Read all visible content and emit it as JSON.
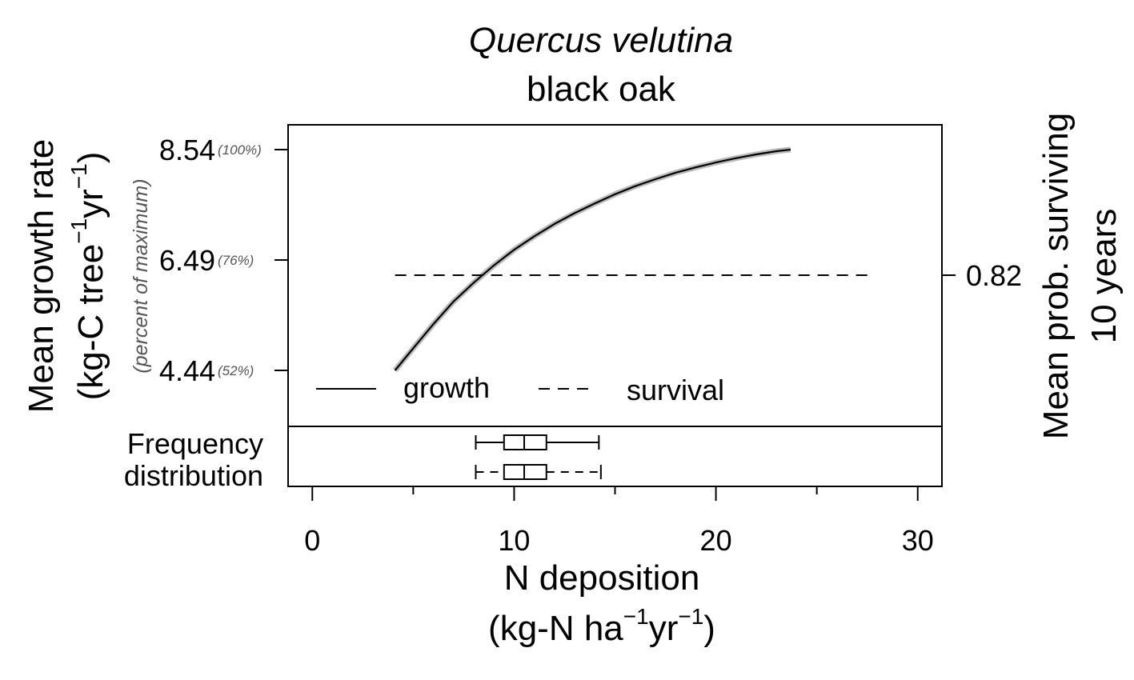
{
  "chart_data": {
    "type": "line",
    "title": "Quercus velutina",
    "subtitle": "black oak",
    "xlabel": "N deposition",
    "xunit": {
      "pre": "(kg-N ha",
      "sup1": "−1",
      "mid": "yr",
      "sup2": "−1",
      "post": ")"
    },
    "ylabel_left": "Mean growth rate",
    "ylabel_left_unit": {
      "pre": "(kg-C tree",
      "sup1": "−1",
      "mid": "yr",
      "sup2": "−1",
      "post": ")"
    },
    "ylabel_left_note": "(percent of maximum)",
    "ylabel_right_line1": "Mean prob. surviving",
    "ylabel_right_line2": "10 years",
    "xlim": [
      -1.2,
      31.2
    ],
    "ylim_left": [
      3.4,
      9.0
    ],
    "x_ticks": [
      0,
      10,
      20,
      30
    ],
    "x_minor_ticks": [
      5,
      15,
      25
    ],
    "x_tick_labels": [
      "0",
      "10",
      "20",
      "30"
    ],
    "y_left_ticks": [
      {
        "value": 8.54,
        "label": "8.54",
        "pct": "(100%)"
      },
      {
        "value": 6.49,
        "label": "6.49",
        "pct": "(76%)"
      },
      {
        "value": 4.44,
        "label": "4.44",
        "pct": "(52%)"
      }
    ],
    "y_right_ticks": [
      {
        "value": 0.82,
        "label": "0.82"
      }
    ],
    "series": [
      {
        "name": "growth",
        "style": "solid",
        "x": [
          4.1,
          5.0,
          6.0,
          7.0,
          8.0,
          9.0,
          10.0,
          11.0,
          12.0,
          13.0,
          14.0,
          15.0,
          16.0,
          17.0,
          18.0,
          19.0,
          20.0,
          21.0,
          22.0,
          23.0,
          23.7
        ],
        "y": [
          4.44,
          4.85,
          5.3,
          5.72,
          6.07,
          6.39,
          6.68,
          6.93,
          7.16,
          7.36,
          7.54,
          7.71,
          7.86,
          7.99,
          8.11,
          8.21,
          8.3,
          8.38,
          8.45,
          8.51,
          8.54
        ]
      },
      {
        "name": "survival",
        "style": "dashed",
        "x": [
          4.1,
          27.5
        ],
        "y_right": 0.82
      }
    ],
    "legend": {
      "placement": "bottom-left",
      "entries": [
        "growth",
        "survival"
      ]
    },
    "frequency_panel": {
      "label_line1": "Frequency",
      "label_line2": "distribution",
      "boxplots": [
        {
          "whisker_style": "solid",
          "min": 8.1,
          "q1": 9.5,
          "median": 10.5,
          "q3": 11.6,
          "max": 14.2
        },
        {
          "whisker_style": "dashed",
          "min": 8.1,
          "q1": 9.5,
          "median": 10.5,
          "q3": 11.6,
          "max": 14.3
        }
      ]
    }
  }
}
